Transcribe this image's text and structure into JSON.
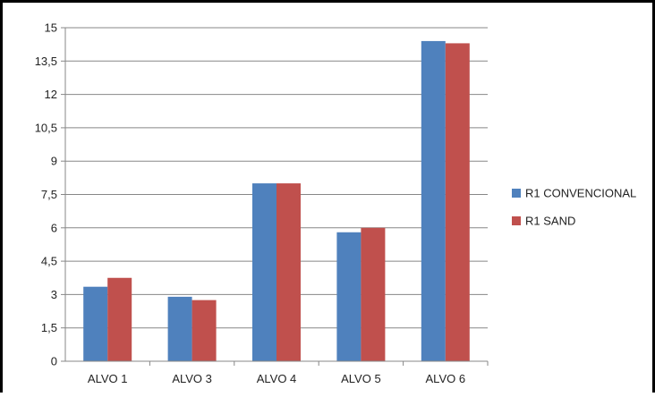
{
  "chart_data": {
    "type": "bar",
    "title": "",
    "xlabel": "",
    "ylabel": "",
    "categories": [
      "ALVO 1",
      "ALVO 3",
      "ALVO 4",
      "ALVO 5",
      "ALVO 6"
    ],
    "series": [
      {
        "name": "R1 CONVENCIONAL",
        "color": "#4F81BD",
        "values": [
          3.35,
          2.9,
          8.0,
          5.8,
          14.4
        ]
      },
      {
        "name": "R1 SAND",
        "color": "#C0504D",
        "values": [
          3.75,
          2.75,
          8.0,
          6.0,
          14.3
        ]
      }
    ],
    "ylim": [
      0,
      15
    ],
    "yticks": [
      "0",
      "1,5",
      "3",
      "4,5",
      "6",
      "7,5",
      "9",
      "10,5",
      "12",
      "13,5",
      "15"
    ],
    "grid": true,
    "legend_position": "right"
  }
}
